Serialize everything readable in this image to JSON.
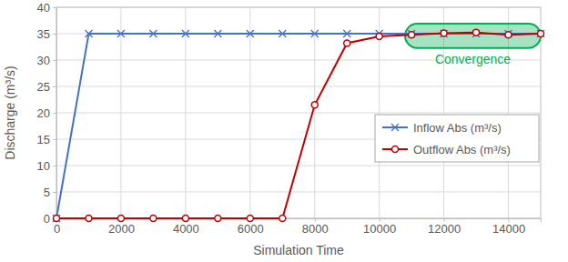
{
  "chart_data": {
    "type": "line",
    "x_label": "Simulation Time",
    "y_label": "Discharge (m³/s)",
    "x": [
      0,
      1000,
      2000,
      3000,
      4000,
      5000,
      6000,
      7000,
      8000,
      9000,
      10000,
      11000,
      12000,
      13000,
      14000,
      15000
    ],
    "series": [
      {
        "name": "Inflow Abs (m³/s)",
        "color": "#4472c4",
        "marker": "x",
        "line_style": "solid",
        "values": [
          0,
          35,
          35,
          35,
          35,
          35,
          35,
          35,
          35,
          35,
          35,
          35,
          35,
          35,
          35,
          35
        ]
      },
      {
        "name": "Outflow Abs (m³/s)",
        "color": "#c00000",
        "marker": "circle",
        "line_style": "solid",
        "values": [
          0,
          0,
          0,
          0,
          0,
          0,
          0,
          0,
          21.5,
          33.2,
          34.5,
          34.8,
          35.1,
          35.2,
          34.8,
          35.0
        ]
      }
    ],
    "xlim": [
      0,
      15000
    ],
    "xticks": [
      0,
      2000,
      4000,
      6000,
      8000,
      10000,
      12000,
      14000
    ],
    "ylim": [
      0,
      40
    ],
    "yticks": [
      0,
      5,
      10,
      15,
      20,
      25,
      30,
      35,
      40
    ],
    "grid": true,
    "legend": "right",
    "annotations": [
      {
        "text": "Convergence",
        "color": "#00b050",
        "x0": 10800,
        "x1": 15000,
        "y0": 32.3,
        "y1": 36.9
      }
    ]
  }
}
